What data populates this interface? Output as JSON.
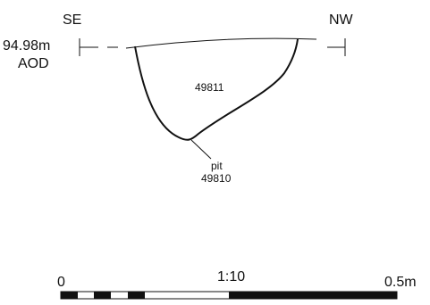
{
  "section": {
    "orientation_left": "SE",
    "orientation_right": "NW",
    "datum_level": "94.98m",
    "datum_unit": "AOD",
    "fill_context": "49811",
    "cut_label": "pit",
    "cut_context": "49810"
  },
  "scale": {
    "ratio": "1:10",
    "start_label": "0",
    "end_label": "0.5m"
  }
}
